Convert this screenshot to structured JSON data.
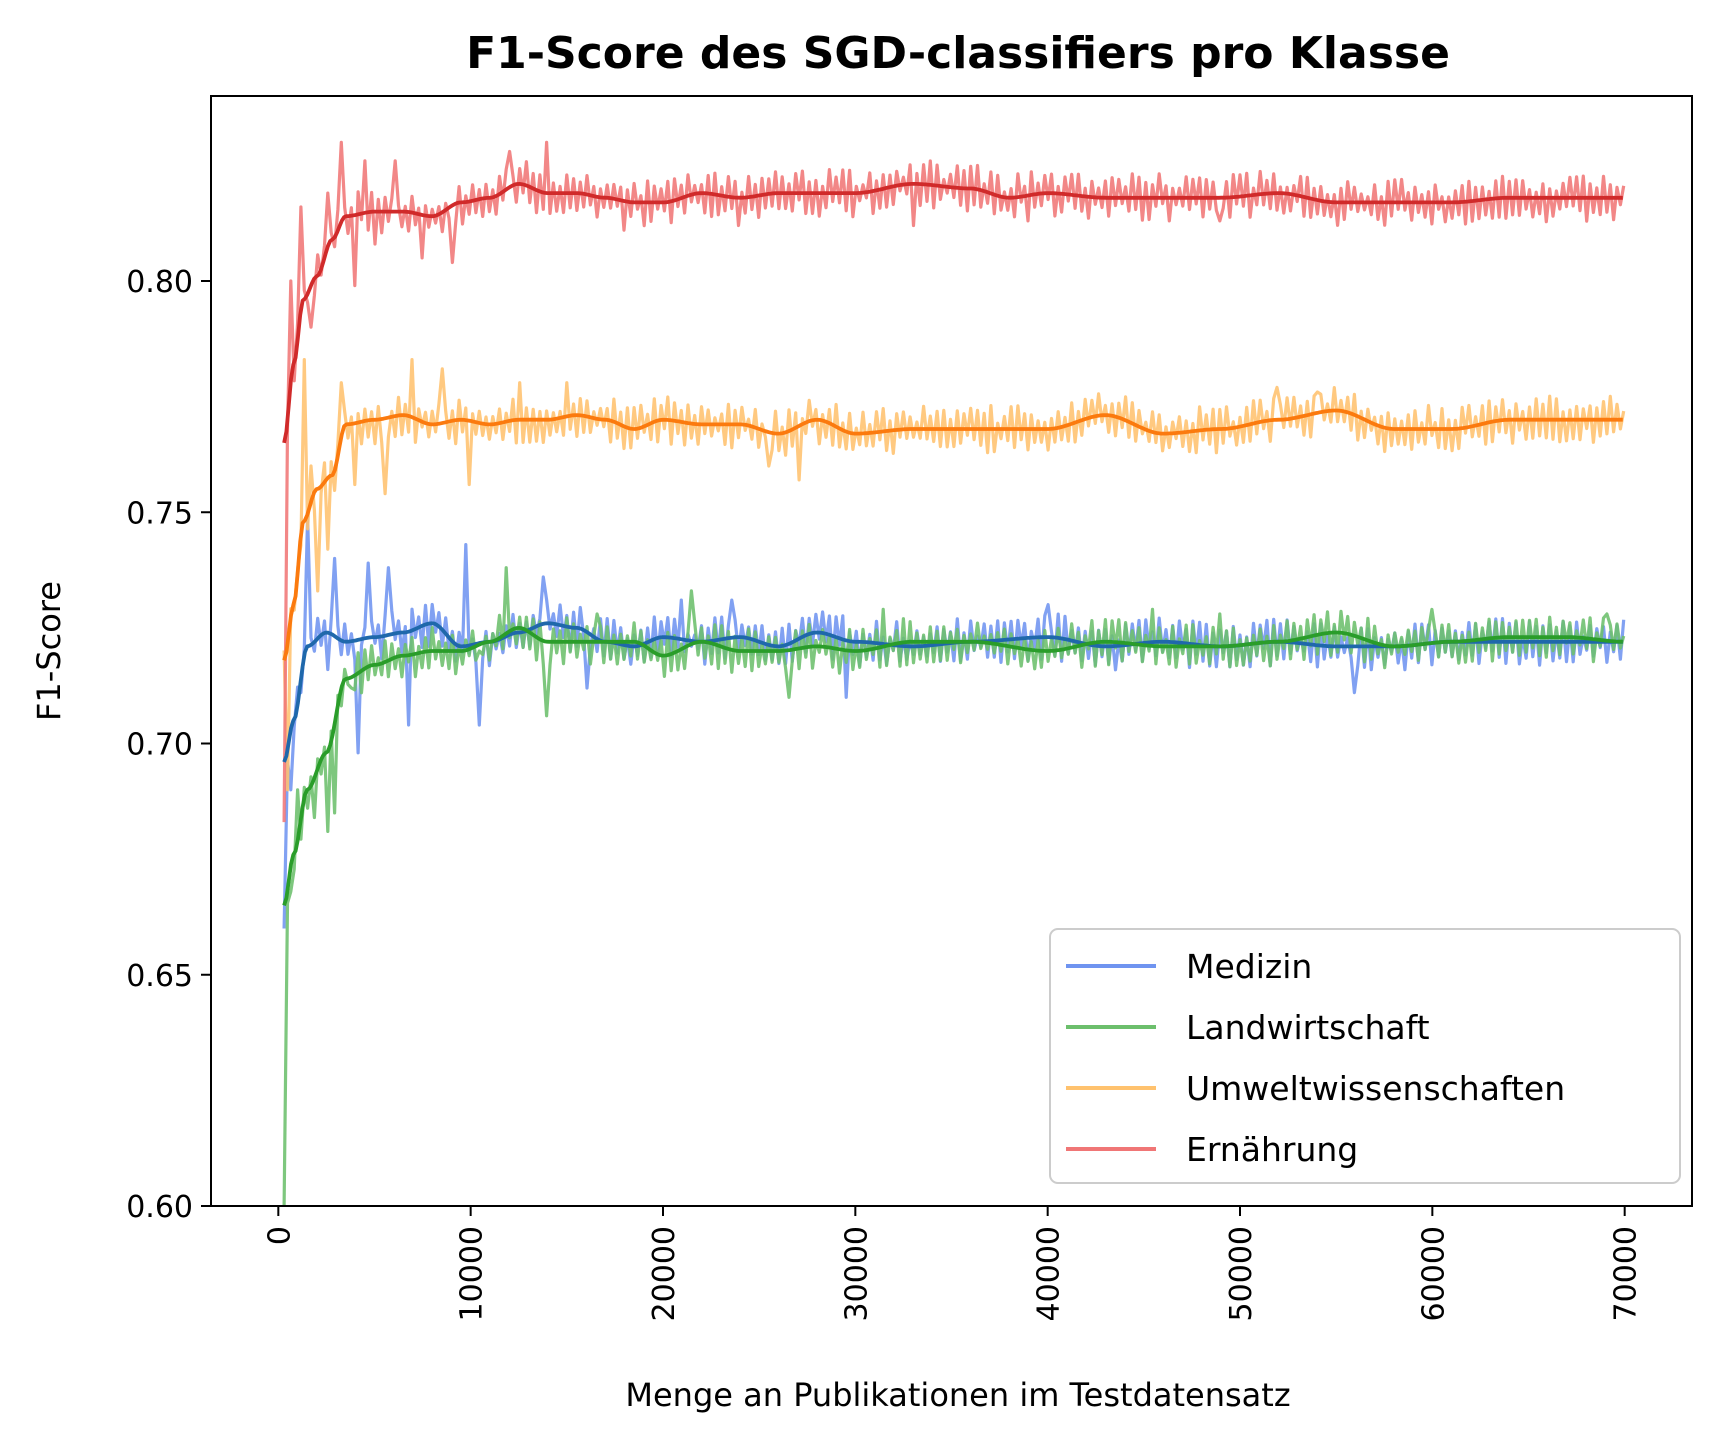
{
  "chart_data": {
    "type": "line",
    "title": "F1-Score des SGD-classifiers pro Klasse",
    "xlabel": "Menge an Publikationen im Testdatensatz",
    "ylabel": "F1-Score",
    "xlim": [
      -3500,
      73500
    ],
    "ylim": [
      0.6,
      0.84
    ],
    "xticks": [
      0,
      10000,
      20000,
      30000,
      40000,
      50000,
      60000,
      70000
    ],
    "yticks": [
      0.6,
      0.65,
      0.7,
      0.75,
      0.8
    ],
    "xtick_labels": [
      "0",
      "10000",
      "20000",
      "30000",
      "40000",
      "50000",
      "60000",
      "70000"
    ],
    "ytick_labels": [
      "0.60",
      "0.65",
      "0.70",
      "0.75",
      "0.80"
    ],
    "xtick_rotation": "vertical",
    "grid": false,
    "legend": {
      "location": "lower-right"
    },
    "series": [
      {
        "name": "Medizin",
        "color": "#6f94f0",
        "smooth_color": "#1f68ab",
        "x": [
          300,
          800,
          1500,
          2500,
          3500,
          5000,
          6500,
          8000,
          9500,
          11000,
          12500,
          14000,
          15500,
          17000,
          18500,
          20000,
          22000,
          24000,
          26000,
          28000,
          30000,
          33000,
          36000,
          40000,
          43000,
          46000,
          49000,
          52000,
          55000,
          58000,
          61000,
          64000,
          67000,
          70000
        ],
        "smooth": [
          0.696,
          0.705,
          0.721,
          0.724,
          0.722,
          0.723,
          0.724,
          0.726,
          0.721,
          0.722,
          0.724,
          0.726,
          0.725,
          0.722,
          0.721,
          0.723,
          0.722,
          0.723,
          0.721,
          0.724,
          0.722,
          0.721,
          0.722,
          0.723,
          0.721,
          0.722,
          0.721,
          0.722,
          0.721,
          0.721,
          0.722,
          0.722,
          0.722,
          0.722
        ],
        "noise_amp": 0.0045,
        "spikes": [
          [
            300,
            0.66
          ],
          [
            700,
            0.69
          ],
          [
            1200,
            0.711
          ],
          [
            1600,
            0.749
          ],
          [
            2500,
            0.716
          ],
          [
            3000,
            0.74
          ],
          [
            4200,
            0.698
          ],
          [
            4700,
            0.739
          ],
          [
            5800,
            0.738
          ],
          [
            6800,
            0.704
          ],
          [
            9800,
            0.743
          ],
          [
            10500,
            0.704
          ],
          [
            13800,
            0.736
          ],
          [
            16000,
            0.712
          ],
          [
            21000,
            0.731
          ],
          [
            23500,
            0.731
          ],
          [
            29500,
            0.71
          ],
          [
            40000,
            0.73
          ],
          [
            56000,
            0.711
          ]
        ],
        "seed": 11
      },
      {
        "name": "Landwirtschaft",
        "color": "#6cbf6c",
        "smooth_color": "#2a9d2a",
        "x": [
          300,
          800,
          1500,
          2500,
          3500,
          5000,
          6500,
          8000,
          9500,
          11000,
          12500,
          14000,
          15500,
          17000,
          18500,
          20000,
          22000,
          24000,
          26000,
          28000,
          30000,
          33000,
          36000,
          40000,
          43000,
          46000,
          49000,
          52000,
          55000,
          58000,
          61000,
          64000,
          67000,
          70000
        ],
        "smooth": [
          0.665,
          0.676,
          0.69,
          0.698,
          0.714,
          0.717,
          0.719,
          0.72,
          0.72,
          0.722,
          0.725,
          0.722,
          0.722,
          0.722,
          0.722,
          0.719,
          0.722,
          0.72,
          0.72,
          0.721,
          0.72,
          0.722,
          0.722,
          0.72,
          0.722,
          0.721,
          0.721,
          0.722,
          0.724,
          0.721,
          0.722,
          0.723,
          0.723,
          0.722
        ],
        "noise_amp": 0.0045,
        "spikes": [
          [
            300,
            0.6
          ],
          [
            600,
            0.668
          ],
          [
            1000,
            0.69
          ],
          [
            1800,
            0.684
          ],
          [
            2600,
            0.681
          ],
          [
            3000,
            0.685
          ],
          [
            3800,
            0.712
          ],
          [
            10500,
            0.72
          ],
          [
            11800,
            0.738
          ],
          [
            14000,
            0.706
          ],
          [
            16500,
            0.728
          ],
          [
            21500,
            0.733
          ],
          [
            26500,
            0.71
          ],
          [
            31500,
            0.729
          ],
          [
            45500,
            0.729
          ],
          [
            49000,
            0.728
          ],
          [
            60000,
            0.729
          ],
          [
            69000,
            0.728
          ]
        ],
        "seed": 23
      },
      {
        "name": "Umweltwissenschaften",
        "color": "#ffc26e",
        "smooth_color": "#fb7a0e",
        "x": [
          300,
          800,
          1300,
          2000,
          2800,
          3500,
          5000,
          6500,
          8000,
          9500,
          11000,
          12500,
          14000,
          15500,
          17000,
          18500,
          20000,
          22000,
          24000,
          26000,
          28000,
          30000,
          33000,
          36000,
          40000,
          43000,
          46000,
          49000,
          52000,
          55000,
          58000,
          61000,
          64000,
          67000,
          70000
        ],
        "smooth": [
          0.718,
          0.73,
          0.748,
          0.755,
          0.758,
          0.769,
          0.77,
          0.771,
          0.769,
          0.77,
          0.769,
          0.77,
          0.77,
          0.771,
          0.77,
          0.768,
          0.77,
          0.769,
          0.769,
          0.767,
          0.77,
          0.767,
          0.768,
          0.768,
          0.768,
          0.771,
          0.767,
          0.768,
          0.77,
          0.772,
          0.768,
          0.768,
          0.77,
          0.77,
          0.77
        ],
        "noise_amp": 0.0045,
        "spikes": [
          [
            500,
            0.69
          ],
          [
            1300,
            0.783
          ],
          [
            1700,
            0.76
          ],
          [
            2100,
            0.733
          ],
          [
            2600,
            0.742
          ],
          [
            3300,
            0.778
          ],
          [
            4000,
            0.756
          ],
          [
            5600,
            0.754
          ],
          [
            7000,
            0.783
          ],
          [
            8500,
            0.781
          ],
          [
            10000,
            0.756
          ],
          [
            12500,
            0.778
          ],
          [
            15000,
            0.778
          ],
          [
            25500,
            0.76
          ],
          [
            27000,
            0.757
          ],
          [
            52000,
            0.777
          ],
          [
            54000,
            0.776
          ]
        ],
        "seed": 37
      },
      {
        "name": "Ernährung",
        "color": "#f07676",
        "smooth_color": "#d02a2a",
        "x": [
          300,
          800,
          1300,
          2000,
          2800,
          3500,
          5000,
          6500,
          8000,
          9500,
          11000,
          12500,
          14000,
          15500,
          17000,
          18500,
          20000,
          22000,
          24000,
          26000,
          28000,
          30000,
          33000,
          36000,
          38000,
          40000,
          43000,
          46000,
          49000,
          52000,
          55000,
          58000,
          61000,
          64000,
          67000,
          70000
        ],
        "smooth": [
          0.765,
          0.782,
          0.796,
          0.801,
          0.809,
          0.814,
          0.815,
          0.815,
          0.814,
          0.817,
          0.818,
          0.821,
          0.819,
          0.819,
          0.818,
          0.817,
          0.817,
          0.819,
          0.818,
          0.819,
          0.819,
          0.819,
          0.821,
          0.82,
          0.818,
          0.819,
          0.818,
          0.818,
          0.818,
          0.819,
          0.817,
          0.817,
          0.817,
          0.818,
          0.818,
          0.818
        ],
        "noise_amp": 0.0045,
        "spikes": [
          [
            300,
            0.683
          ],
          [
            700,
            0.8
          ],
          [
            1200,
            0.816
          ],
          [
            1700,
            0.79
          ],
          [
            2500,
            0.819
          ],
          [
            3300,
            0.83
          ],
          [
            3900,
            0.799
          ],
          [
            4500,
            0.826
          ],
          [
            5000,
            0.808
          ],
          [
            6000,
            0.826
          ],
          [
            7500,
            0.805
          ],
          [
            9000,
            0.804
          ],
          [
            12000,
            0.828
          ],
          [
            14000,
            0.83
          ],
          [
            18000,
            0.811
          ],
          [
            24000,
            0.812
          ],
          [
            33000,
            0.812
          ],
          [
            39000,
            0.813
          ],
          [
            49000,
            0.813
          ]
        ],
        "seed": 53
      }
    ]
  }
}
